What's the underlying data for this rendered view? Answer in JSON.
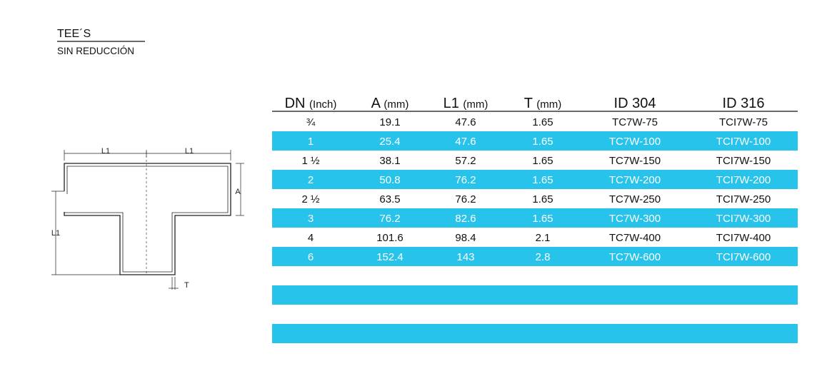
{
  "header": {
    "title": "TEE´S",
    "subtitle": "SIN REDUCCIÓN"
  },
  "diagram": {
    "labels": [
      "L1",
      "L1",
      "A",
      "L1",
      "T"
    ]
  },
  "table": {
    "columns": [
      {
        "name": "DN",
        "unit": "(Inch)"
      },
      {
        "name": "A",
        "unit": "(mm)"
      },
      {
        "name": "L1",
        "unit": "(mm)"
      },
      {
        "name": "T",
        "unit": "(mm)"
      },
      {
        "name": "ID 304"
      },
      {
        "name": "ID 316"
      }
    ],
    "rows": [
      [
        "¾",
        "19.1",
        "47.6",
        "1.65",
        "TC7W-75",
        "TCI7W-75"
      ],
      [
        "1",
        "25.4",
        "47.6",
        "1.65",
        "TC7W-100",
        "TCI7W-100"
      ],
      [
        "1 ½",
        "38.1",
        "57.2",
        "1.65",
        "TC7W-150",
        "TCI7W-150"
      ],
      [
        "2",
        "50.8",
        "76.2",
        "1.65",
        "TC7W-200",
        "TCI7W-200"
      ],
      [
        "2 ½",
        "63.5",
        "76.2",
        "1.65",
        "TC7W-250",
        "TCI7W-250"
      ],
      [
        "3",
        "76.2",
        "82.6",
        "1.65",
        "TC7W-300",
        "TCI7W-300"
      ],
      [
        "4",
        "101.6",
        "98.4",
        "2.1",
        "TC7W-400",
        "TCI7W-400"
      ],
      [
        "6",
        "152.4",
        "143",
        "2.8",
        "TC7W-600",
        "TCI7W-600"
      ]
    ]
  }
}
